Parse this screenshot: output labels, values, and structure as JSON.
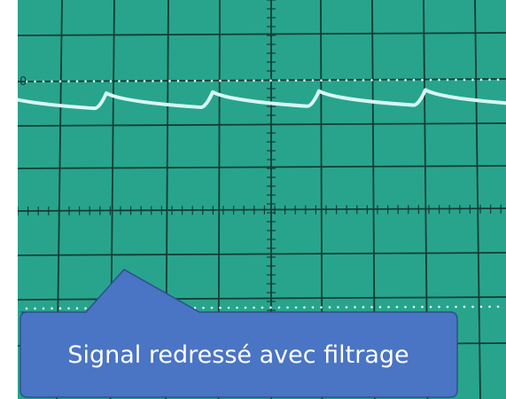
{
  "scope": {
    "marker_zero": "0",
    "colors": {
      "screen": "#2aa88f",
      "grid": "#163c34",
      "dots": "#e9fbf4",
      "trace": "#d8f7f3",
      "callout_fill": "#4a74c4",
      "callout_border": "#2f4f8f"
    }
  },
  "callout": {
    "text": "Signal redressé avec filtrage"
  }
}
